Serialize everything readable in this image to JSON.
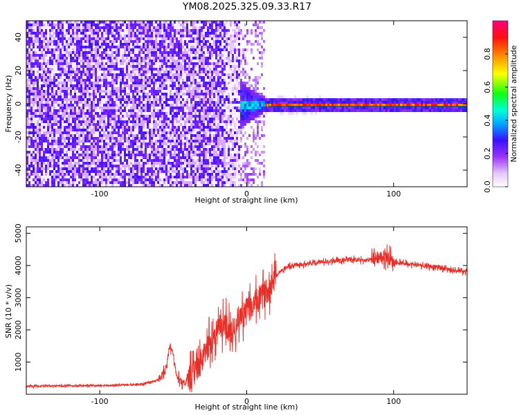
{
  "title": "YM08.2025.325.09.33.R17",
  "chart_data": [
    {
      "type": "heatmap",
      "xlabel": "Height of straight line (km)",
      "ylabel": "Frequency (Hz)",
      "xlim": [
        -150,
        150
      ],
      "ylim": [
        -50,
        50
      ],
      "xticks": [
        -100,
        0,
        100
      ],
      "xtick_labels": [
        "-100",
        "0",
        "100"
      ],
      "yticks": [
        -40,
        -20,
        0,
        20,
        40
      ],
      "ytick_labels": [
        "-40",
        "-20",
        "0",
        "20",
        "40"
      ],
      "colorbar": {
        "label": "Normalized spectral amplitude",
        "range": [
          0,
          1
        ],
        "ticks": [
          0.0,
          0.2,
          0.4,
          0.6,
          0.8
        ],
        "tick_labels": [
          "0.0",
          "0.2",
          "0.4",
          "0.6",
          "0.8"
        ]
      },
      "regions": [
        {
          "x_range": [
            -150,
            -5
          ],
          "freq_range": [
            -50,
            50
          ],
          "amplitude": 0.12,
          "description": "broadband noise"
        },
        {
          "x_range": [
            -15,
            15
          ],
          "freq_range": [
            -12,
            12
          ],
          "amplitude": 0.35,
          "description": "transition"
        },
        {
          "x_range": [
            15,
            150
          ],
          "freq_range": [
            -1,
            1
          ],
          "amplitude": 0.9,
          "description": "narrow line at 0 Hz"
        }
      ]
    },
    {
      "type": "line",
      "xlabel": "Height of straight line (km)",
      "ylabel": "SNR (10 * v/v)",
      "xlim": [
        -150,
        150
      ],
      "ylim": [
        0,
        5200
      ],
      "xticks": [
        -100,
        0,
        100
      ],
      "xtick_labels": [
        "-100",
        "0",
        "100"
      ],
      "yticks": [
        1000,
        2000,
        3000,
        4000,
        5000
      ],
      "ytick_labels": [
        "1000",
        "2000",
        "3000",
        "4000",
        "5000"
      ],
      "series": [
        {
          "color": "#e8302a",
          "x": [
            -150,
            -120,
            -90,
            -70,
            -60,
            -55,
            -52,
            -50,
            -48,
            -45,
            -42,
            -38,
            -35,
            -30,
            -25,
            -20,
            -15,
            -10,
            -5,
            0,
            5,
            10,
            15,
            20,
            25,
            30,
            40,
            50,
            60,
            70,
            80,
            90,
            95,
            100,
            110,
            120,
            130,
            140,
            150
          ],
          "y": [
            250,
            260,
            280,
            320,
            450,
            800,
            1500,
            1200,
            600,
            400,
            380,
            500,
            700,
            1100,
            1600,
            2000,
            2200,
            1900,
            2400,
            2600,
            2800,
            3000,
            3300,
            3700,
            3900,
            4000,
            4050,
            4100,
            4150,
            4200,
            4150,
            4250,
            4300,
            4100,
            4050,
            4000,
            3950,
            3850,
            3800
          ]
        }
      ]
    }
  ]
}
